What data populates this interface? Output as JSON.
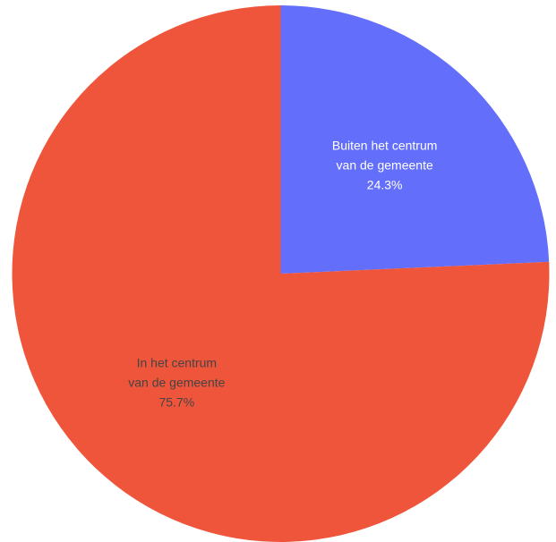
{
  "chart_data": {
    "type": "pie",
    "title": "",
    "slices": [
      {
        "label_lines": [
          "Buiten het centrum",
          "van de gemeente"
        ],
        "value": 24.3,
        "value_label": "24.3%",
        "color": "#636efa",
        "text_color": "#ffffff"
      },
      {
        "label_lines": [
          "In het centrum",
          "van de gemeente"
        ],
        "value": 75.7,
        "value_label": "75.7%",
        "color": "#ef553b",
        "text_color": "#444444"
      }
    ],
    "start_angle": "12 o'clock",
    "direction": "clockwise",
    "legend": "none"
  }
}
